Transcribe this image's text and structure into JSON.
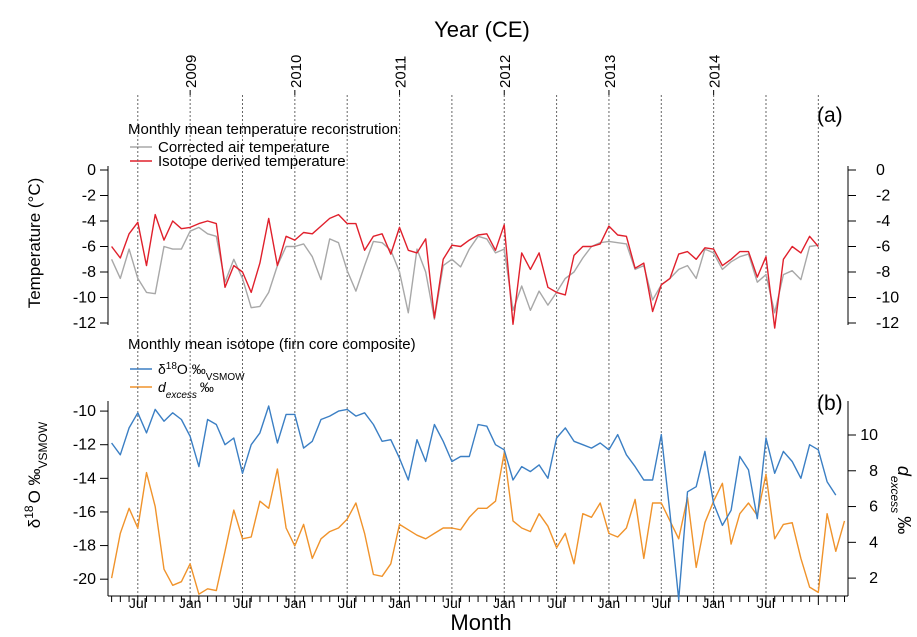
{
  "colors": {
    "air_temp": "#a8a8a8",
    "isotope_temp": "#e0202c",
    "d18o": "#3b7fc4",
    "dexcess": "#f0932b",
    "axis": "#000000",
    "grid": "#666666"
  },
  "figure": {
    "top_axis_title": "Year (CE)",
    "bottom_axis_title": "Month",
    "years": [
      "2009",
      "2010",
      "2011",
      "2012",
      "2013",
      "2014"
    ],
    "month_labels": [
      "Jul",
      "Jan",
      "Jul",
      "Jan",
      "Jul",
      "Jan",
      "Jul",
      "Jan",
      "Jul",
      "Jan",
      "Jul",
      "Jan",
      "Jul"
    ]
  },
  "chart_data": [
    {
      "type": "line",
      "panel_label": "(a)",
      "legend_title": "Monthly mean temperature reconstrution",
      "ylabel": "Temperature (°C)",
      "ylim": [
        -12,
        0
      ],
      "yticks": [
        "0",
        "-2",
        "-4",
        "-6",
        "-8",
        "-10",
        "-12"
      ],
      "right_yticks": [
        "0",
        "-2",
        "-4",
        "-6",
        "-8",
        "-10",
        "-12"
      ],
      "legend_placement": "top-left",
      "grid": "vertical dotted lines at each January and July",
      "x_start": "2008-04",
      "series": [
        {
          "name": "Corrected air temperature",
          "color_key": "air_temp",
          "values": [
            -7.0,
            -8.5,
            -6.2,
            -8.5,
            -9.6,
            -9.7,
            -6.0,
            -6.2,
            -6.2,
            -4.8,
            -4.5,
            -5.0,
            -5.2,
            -8.8,
            -7.0,
            -8.5,
            -10.8,
            -10.7,
            -9.6,
            -7.5,
            -6.0,
            -6.0,
            -5.8,
            -6.8,
            -8.6,
            -5.4,
            -5.7,
            -7.9,
            -9.5,
            -7.5,
            -5.6,
            -5.7,
            -6.3,
            -8.0,
            -11.2,
            -6.2,
            -8.0,
            -11.7,
            -7.5,
            -7.0,
            -7.6,
            -6.2,
            -5.2,
            -5.4,
            -6.5,
            -6.2,
            -11.0,
            -9.1,
            -11.0,
            -9.5,
            -10.6,
            -9.6,
            -8.5,
            -8.0,
            -6.9,
            -6.0,
            -5.7,
            -5.6,
            -5.7,
            -5.8,
            -7.8,
            -7.5,
            -10.2,
            -9.0,
            -8.5,
            -7.8,
            -7.5,
            -8.5,
            -6.2,
            -6.5,
            -7.8,
            -7.2,
            -6.8,
            -6.6,
            -8.8,
            -8.2,
            -11.2,
            -8.2,
            -7.9,
            -8.6,
            -6.0,
            -5.9
          ]
        },
        {
          "name": "Isotope derived temperature",
          "color_key": "isotope_temp",
          "values": [
            -6.0,
            -6.9,
            -5.0,
            -4.1,
            -7.5,
            -3.5,
            -5.5,
            -4.0,
            -4.6,
            -4.5,
            -4.2,
            -4.0,
            -4.2,
            -9.2,
            -7.5,
            -8.0,
            -9.6,
            -7.3,
            -3.8,
            -7.5,
            -5.2,
            -5.5,
            -4.9,
            -5.0,
            -4.4,
            -3.8,
            -3.5,
            -4.2,
            -4.2,
            -6.3,
            -5.2,
            -5.0,
            -6.6,
            -4.5,
            -6.3,
            -6.5,
            -5.4,
            -11.6,
            -7.0,
            -5.9,
            -6.0,
            -5.5,
            -5.1,
            -5.0,
            -6.3,
            -4.3,
            -12.1,
            -6.5,
            -7.8,
            -6.5,
            -9.2,
            -9.6,
            -9.8,
            -6.7,
            -6.0,
            -6.0,
            -5.8,
            -4.4,
            -5.1,
            -5.2,
            -7.7,
            -7.3,
            -11.1,
            -9.0,
            -8.5,
            -6.6,
            -6.4,
            -7.0,
            -6.1,
            -6.2,
            -7.5,
            -7.0,
            -6.4,
            -6.4,
            -8.4,
            -6.8,
            -12.4,
            -7.0,
            -6.0,
            -6.5,
            -5.2,
            -6.0
          ]
        }
      ]
    },
    {
      "type": "line",
      "panel_label": "(b)",
      "legend_title": "Monthly mean isotope (firn core composite)",
      "ylabel": "δ¹⁸O ‰ VSMOW",
      "ylabel_parts": {
        "pre": "δ",
        "sup": "18",
        "mid": "O ‰",
        "sub": "VSMOW"
      },
      "ylim": [
        -21,
        -9.4
      ],
      "yticks": [
        "-10",
        "-12",
        "-14",
        "-16",
        "-18",
        "-20"
      ],
      "right_ylabel": "d excess ‰",
      "right_ylabel_parts": {
        "main": "d",
        "sub": "excess",
        "unit": "‰"
      },
      "right_ylim": [
        1,
        11.9
      ],
      "right_yticks": [
        "10",
        "8",
        "6",
        "4",
        "2"
      ],
      "legend_placement": "top-left",
      "x_start": "2008-04",
      "series": [
        {
          "name": "δ¹⁸O ‰VSMOW",
          "legend_parts": {
            "pre": "δ",
            "sup": "18",
            "mid": "O ‰",
            "sub": "VSMOW"
          },
          "axis": "left",
          "color_key": "d18o",
          "values": [
            -11.9,
            -12.6,
            -11.0,
            -10.1,
            -11.3,
            -9.9,
            -10.6,
            -10.1,
            -10.5,
            -11.5,
            -13.3,
            -10.5,
            -10.8,
            -12.0,
            -11.6,
            -13.7,
            -12.0,
            -11.3,
            -9.7,
            -11.9,
            -10.2,
            -10.2,
            -12.2,
            -11.8,
            -10.5,
            -10.3,
            -10.0,
            -9.9,
            -10.3,
            -10.1,
            -10.8,
            -11.8,
            -11.7,
            -12.8,
            -14.1,
            -11.7,
            -13.0,
            -10.8,
            -11.8,
            -13.0,
            -12.7,
            -12.7,
            -10.8,
            -10.9,
            -12.0,
            -12.3,
            -14.1,
            -13.3,
            -13.6,
            -13.2,
            -14.0,
            -11.6,
            -11.0,
            -11.8,
            -12.0,
            -12.2,
            -11.9,
            -12.3,
            -11.4,
            -12.6,
            -13.3,
            -14.1,
            -14.1,
            -11.4,
            -16.1,
            -21.2,
            -14.8,
            -14.5,
            -12.4,
            -15.5,
            -16.8,
            -15.9,
            -12.7,
            -13.5,
            -16.4,
            -11.6,
            -13.7,
            -12.4,
            -13.0,
            -14.0,
            -12.0,
            -12.3,
            -14.2,
            -15.0
          ]
        },
        {
          "name": "d excess ‰",
          "legend_parts": {
            "main": "d",
            "sub": "excess",
            "unit": "‰"
          },
          "axis": "right",
          "color_key": "dexcess",
          "values": [
            2.0,
            4.5,
            5.9,
            4.8,
            7.9,
            6.0,
            2.5,
            1.6,
            1.8,
            2.8,
            1.1,
            1.4,
            1.3,
            3.5,
            5.8,
            4.2,
            4.3,
            6.3,
            5.9,
            8.1,
            4.8,
            3.8,
            5.0,
            3.1,
            4.2,
            4.6,
            4.8,
            5.3,
            6.2,
            4.5,
            2.2,
            2.1,
            2.8,
            5.0,
            4.7,
            4.4,
            4.2,
            4.5,
            4.8,
            4.8,
            4.7,
            5.4,
            5.9,
            5.9,
            6.3,
            9.0,
            5.2,
            4.8,
            4.6,
            5.6,
            4.9,
            3.7,
            4.5,
            2.8,
            5.6,
            5.4,
            6.2,
            4.5,
            4.3,
            4.8,
            6.4,
            3.1,
            6.2,
            6.2,
            5.2,
            4.2,
            6.5,
            2.6,
            5.1,
            6.3,
            7.3,
            3.9,
            5.6,
            6.2,
            5.5,
            7.8,
            4.2,
            5.0,
            5.1,
            3.1,
            1.5,
            1.2,
            5.6,
            3.5,
            5.2
          ]
        }
      ]
    }
  ]
}
